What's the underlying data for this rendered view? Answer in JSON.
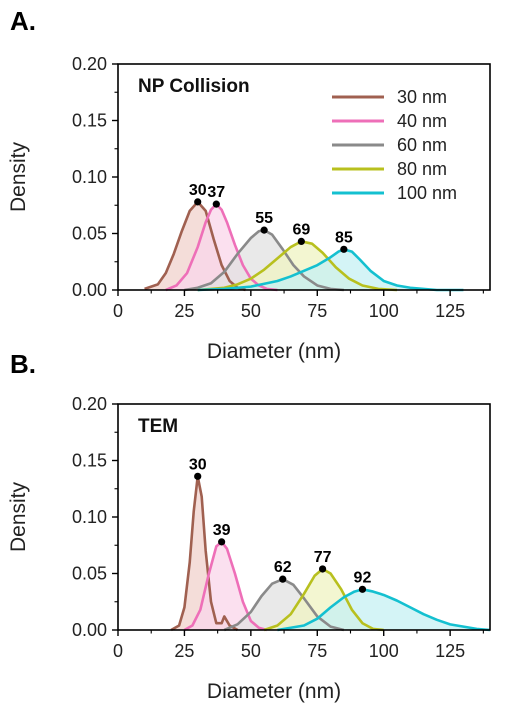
{
  "chart_data": [
    {
      "type": "line",
      "panel_label": "A.",
      "title": "NP Collision",
      "xlabel": "Diameter (nm)",
      "ylabel": "Density",
      "xlim": [
        0,
        140
      ],
      "ylim": [
        0,
        0.2
      ],
      "xticks": [
        0,
        25,
        50,
        75,
        100,
        125
      ],
      "yticks": [
        0.0,
        0.05,
        0.1,
        0.15,
        0.2
      ],
      "tick_labels_x": [
        "0",
        "25",
        "50",
        "75",
        "100",
        "125"
      ],
      "tick_labels_y": [
        "0.00",
        "0.05",
        "0.10",
        "0.15",
        "0.20"
      ],
      "legend_position": "top-right",
      "grid": false,
      "series": [
        {
          "name": "30 nm",
          "color": "#a06050",
          "fill": "#f0d2cc",
          "x": [
            10,
            15,
            18,
            21,
            24,
            27,
            30,
            33,
            36,
            39,
            42,
            45,
            48
          ],
          "y": [
            0.001,
            0.005,
            0.015,
            0.032,
            0.052,
            0.07,
            0.078,
            0.07,
            0.045,
            0.022,
            0.008,
            0.002,
            0.0
          ],
          "peak": {
            "x": 30,
            "y": 0.078,
            "label": "30"
          }
        },
        {
          "name": "40 nm",
          "color": "#ee6fb8",
          "fill": "#fad5ea",
          "x": [
            18,
            22,
            26,
            30,
            33,
            35,
            37,
            39,
            41,
            44,
            47,
            50,
            53,
            56,
            60
          ],
          "y": [
            0.0,
            0.004,
            0.015,
            0.038,
            0.06,
            0.071,
            0.076,
            0.071,
            0.06,
            0.04,
            0.022,
            0.01,
            0.004,
            0.001,
            0.0
          ],
          "peak": {
            "x": 37,
            "y": 0.076,
            "label": "37"
          }
        },
        {
          "name": "60 nm",
          "color": "#8a8a8a",
          "fill": "#e1e1e1",
          "x": [
            25,
            30,
            35,
            40,
            45,
            50,
            53,
            55,
            58,
            62,
            66,
            70,
            75,
            80,
            85
          ],
          "y": [
            0.0,
            0.002,
            0.006,
            0.016,
            0.032,
            0.046,
            0.052,
            0.053,
            0.049,
            0.036,
            0.022,
            0.012,
            0.004,
            0.001,
            0.0
          ],
          "peak": {
            "x": 55,
            "y": 0.053,
            "label": "55"
          }
        },
        {
          "name": "80 nm",
          "color": "#b8c01e",
          "fill": "#eff3c2",
          "x": [
            30,
            40,
            45,
            50,
            55,
            60,
            65,
            69,
            73,
            77,
            82,
            87,
            92,
            98,
            105
          ],
          "y": [
            0.0,
            0.002,
            0.005,
            0.01,
            0.018,
            0.028,
            0.038,
            0.043,
            0.041,
            0.033,
            0.02,
            0.01,
            0.004,
            0.001,
            0.0
          ],
          "peak": {
            "x": 69,
            "y": 0.043,
            "label": "69"
          }
        },
        {
          "name": "100 nm",
          "color": "#14c0d0",
          "fill": "#c6f0f3",
          "x": [
            30,
            40,
            50,
            60,
            65,
            70,
            75,
            80,
            83,
            85,
            88,
            91,
            95,
            100,
            105,
            110,
            120,
            130
          ],
          "y": [
            0.0,
            0.001,
            0.003,
            0.008,
            0.012,
            0.017,
            0.022,
            0.029,
            0.034,
            0.036,
            0.034,
            0.027,
            0.017,
            0.008,
            0.004,
            0.002,
            0.0,
            0.0
          ],
          "peak": {
            "x": 85,
            "y": 0.036,
            "label": "85"
          }
        }
      ]
    },
    {
      "type": "line",
      "panel_label": "B.",
      "title": "TEM",
      "xlabel": "Diameter (nm)",
      "ylabel": "Density",
      "xlim": [
        0,
        140
      ],
      "ylim": [
        0,
        0.2
      ],
      "xticks": [
        0,
        25,
        50,
        75,
        100,
        125
      ],
      "yticks": [
        0.0,
        0.05,
        0.1,
        0.15,
        0.2
      ],
      "tick_labels_x": [
        "0",
        "25",
        "50",
        "75",
        "100",
        "125"
      ],
      "tick_labels_y": [
        "0.00",
        "0.05",
        "0.10",
        "0.15",
        "0.20"
      ],
      "grid": false,
      "series": [
        {
          "name": "30 nm",
          "color": "#a06050",
          "fill": "#f0d2cc",
          "x": [
            20,
            23,
            25,
            27,
            28.5,
            30,
            31.5,
            33,
            35,
            37,
            39,
            40,
            42,
            45
          ],
          "y": [
            0.0,
            0.004,
            0.02,
            0.06,
            0.105,
            0.136,
            0.118,
            0.07,
            0.025,
            0.006,
            0.006,
            0.012,
            0.004,
            0.0
          ],
          "peak": {
            "x": 30,
            "y": 0.136,
            "label": "30"
          }
        },
        {
          "name": "40 nm",
          "color": "#ee6fb8",
          "fill": "#fad5ea",
          "x": [
            25,
            28,
            31,
            34,
            37,
            39,
            41,
            44,
            47,
            50,
            53,
            56
          ],
          "y": [
            0.0,
            0.004,
            0.018,
            0.048,
            0.074,
            0.078,
            0.072,
            0.05,
            0.025,
            0.008,
            0.002,
            0.0
          ],
          "peak": {
            "x": 39,
            "y": 0.078,
            "label": "39"
          }
        },
        {
          "name": "60 nm",
          "color": "#8a8a8a",
          "fill": "#e1e1e1",
          "x": [
            40,
            45,
            50,
            54,
            58,
            62,
            66,
            70,
            75,
            80,
            85
          ],
          "y": [
            0.0,
            0.005,
            0.016,
            0.03,
            0.041,
            0.045,
            0.04,
            0.028,
            0.012,
            0.003,
            0.0
          ],
          "peak": {
            "x": 62,
            "y": 0.045,
            "label": "62"
          }
        },
        {
          "name": "80 nm",
          "color": "#b8c01e",
          "fill": "#eff3c2",
          "x": [
            55,
            60,
            65,
            70,
            74,
            77,
            80,
            84,
            88,
            92,
            96,
            100
          ],
          "y": [
            0.0,
            0.004,
            0.014,
            0.032,
            0.048,
            0.054,
            0.05,
            0.036,
            0.018,
            0.006,
            0.001,
            0.0
          ],
          "peak": {
            "x": 77,
            "y": 0.054,
            "label": "77"
          }
        },
        {
          "name": "100 nm",
          "color": "#14c0d0",
          "fill": "#c6f0f3",
          "x": [
            60,
            70,
            75,
            80,
            85,
            89,
            92,
            96,
            100,
            105,
            110,
            115,
            120,
            125,
            130,
            135,
            140
          ],
          "y": [
            0.0,
            0.004,
            0.01,
            0.02,
            0.029,
            0.034,
            0.036,
            0.034,
            0.031,
            0.026,
            0.02,
            0.014,
            0.009,
            0.005,
            0.003,
            0.001,
            0.0
          ],
          "peak": {
            "x": 92,
            "y": 0.036,
            "label": "92"
          }
        }
      ]
    }
  ]
}
